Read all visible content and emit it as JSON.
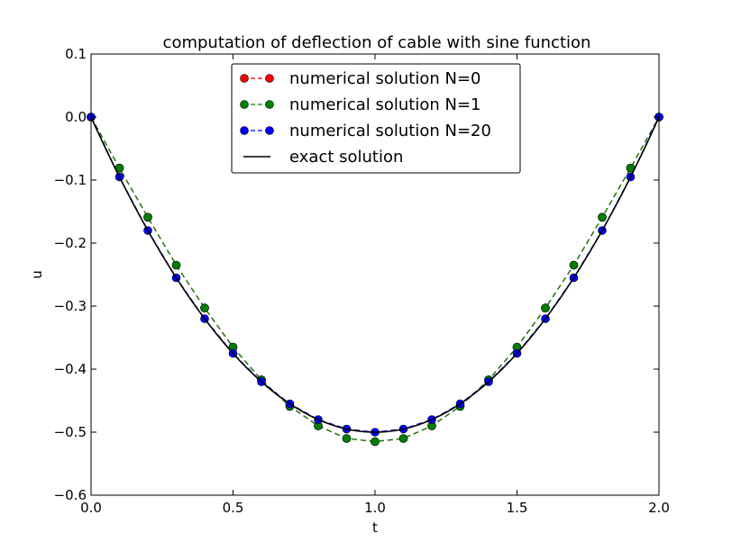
{
  "chart_data": {
    "type": "line",
    "title": "computation of deflection of cable with sine function",
    "xlabel": "t",
    "ylabel": "u",
    "xlim": [
      0,
      2
    ],
    "ylim": [
      -0.6,
      0.1
    ],
    "xticks": [
      0.0,
      0.5,
      1.0,
      1.5,
      2.0
    ],
    "xtick_labels": [
      "0.0",
      "0.5",
      "1.0",
      "1.5",
      "2.0"
    ],
    "yticks": [
      0.1,
      0.0,
      -0.1,
      -0.2,
      -0.3,
      -0.4,
      -0.5,
      -0.6
    ],
    "ytick_labels": [
      "0.1",
      "0.0",
      "−0.1",
      "−0.2",
      "−0.3",
      "−0.4",
      "−0.5",
      "−0.6"
    ],
    "grid": false,
    "legend_position": "top-center",
    "series": [
      {
        "name": "numerical solution N=0",
        "color": "#ff0000",
        "style": "dashed-markers",
        "x": [
          0.0,
          0.1,
          0.2,
          0.3,
          0.4,
          0.5,
          0.6,
          0.7,
          0.8,
          0.9,
          1.0,
          1.1,
          1.2,
          1.3,
          1.4,
          1.5,
          1.6,
          1.7,
          1.8,
          1.9,
          2.0
        ],
        "values": [
          0.0,
          -0.081,
          -0.159,
          -0.235,
          -0.303,
          -0.365,
          -0.417,
          -0.459,
          -0.49,
          -0.51,
          -0.515,
          -0.51,
          -0.49,
          -0.459,
          -0.417,
          -0.365,
          -0.303,
          -0.235,
          -0.159,
          -0.081,
          0.0
        ]
      },
      {
        "name": "numerical solution N=1",
        "color": "#008000",
        "style": "dashed-markers",
        "x": [
          0.0,
          0.1,
          0.2,
          0.3,
          0.4,
          0.5,
          0.6,
          0.7,
          0.8,
          0.9,
          1.0,
          1.1,
          1.2,
          1.3,
          1.4,
          1.5,
          1.6,
          1.7,
          1.8,
          1.9,
          2.0
        ],
        "values": [
          0.0,
          -0.081,
          -0.159,
          -0.235,
          -0.303,
          -0.365,
          -0.417,
          -0.459,
          -0.49,
          -0.51,
          -0.515,
          -0.51,
          -0.49,
          -0.459,
          -0.417,
          -0.365,
          -0.303,
          -0.235,
          -0.159,
          -0.081,
          0.0
        ]
      },
      {
        "name": "numerical solution N=20",
        "color": "#0000ff",
        "style": "dashed-markers",
        "x": [
          0.0,
          0.1,
          0.2,
          0.3,
          0.4,
          0.5,
          0.6,
          0.7,
          0.8,
          0.9,
          1.0,
          1.1,
          1.2,
          1.3,
          1.4,
          1.5,
          1.6,
          1.7,
          1.8,
          1.9,
          2.0
        ],
        "values": [
          0.0,
          -0.095,
          -0.18,
          -0.255,
          -0.32,
          -0.375,
          -0.42,
          -0.455,
          -0.48,
          -0.495,
          -0.5,
          -0.495,
          -0.48,
          -0.455,
          -0.42,
          -0.375,
          -0.32,
          -0.255,
          -0.18,
          -0.095,
          0.0
        ]
      },
      {
        "name": "exact solution",
        "color": "#000000",
        "style": "solid",
        "function": "u = 0.5*t*t - t",
        "x_range": [
          0,
          2
        ]
      }
    ]
  }
}
